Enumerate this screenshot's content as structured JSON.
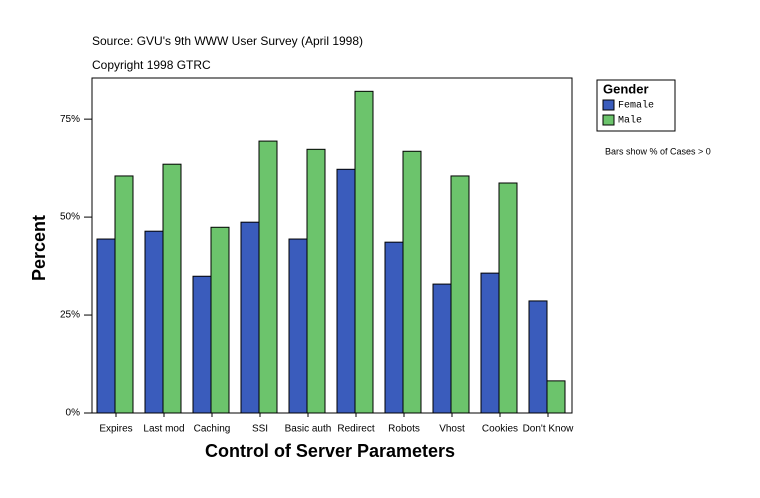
{
  "chart_data": {
    "type": "bar",
    "source": "Source: GVU's 9th WWW User Survey (April 1998)",
    "copyright": "Copyright 1998 GTRC",
    "x_label": "Control of Server Parameters",
    "y_label": "Percent",
    "legend_title": "Gender",
    "note": "Bars show % of Cases > 0",
    "categories": [
      "Expires",
      "Last mod",
      "Caching",
      "SSI",
      "Basic auth",
      "Redirect",
      "Robots",
      "Vhost",
      "Cookies",
      "Don't Know"
    ],
    "series": [
      {
        "name": "Female",
        "color": "#3a5cbc",
        "values": [
          44.4,
          46.4,
          34.9,
          48.7,
          44.4,
          62.2,
          43.6,
          32.9,
          35.7,
          28.6
        ]
      },
      {
        "name": "Male",
        "color": "#6cc46c",
        "values": [
          60.5,
          63.5,
          47.4,
          69.4,
          67.3,
          82.1,
          66.8,
          60.5,
          58.7,
          8.2
        ]
      }
    ],
    "ylim": [
      0,
      85.5
    ],
    "yticks": [
      {
        "value": 0,
        "label": "0%"
      },
      {
        "value": 25,
        "label": "25%"
      },
      {
        "value": 50,
        "label": "50%"
      },
      {
        "value": 75,
        "label": "75%"
      }
    ],
    "grid": false,
    "legend": "right"
  }
}
